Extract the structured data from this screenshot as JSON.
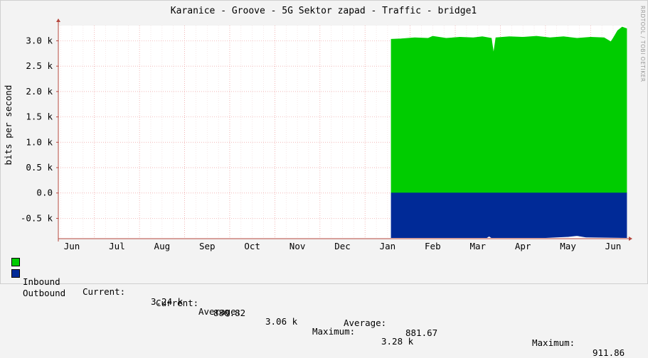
{
  "chart_data": {
    "type": "area",
    "title": "Karanice - Groove - 5G Sektor zapad - Traffic - bridge1",
    "ylabel": "bits per second",
    "ylim": [
      -0.9,
      3.3
    ],
    "yticks": [
      "3.0 k",
      "2.5 k",
      "2.0 k",
      "1.5 k",
      "1.0 k",
      "0.5 k",
      "0.0",
      "-0.5 k"
    ],
    "ytick_values": [
      3.0,
      2.5,
      2.0,
      1.5,
      1.0,
      0.5,
      0.0,
      -0.5
    ],
    "unit": "k",
    "categories": [
      "Jun",
      "Jul",
      "Aug",
      "Sep",
      "Oct",
      "Nov",
      "Dec",
      "Jan",
      "Feb",
      "Mar",
      "Apr",
      "May",
      "Jun"
    ],
    "x": [
      6.0,
      7.0,
      8.0,
      9.0,
      10.0,
      11.0,
      12.0,
      13.0,
      14.0,
      15.0,
      16.0,
      17.0,
      18.0
    ],
    "xlim": [
      5.7,
      18.3
    ],
    "data_start": 13.08,
    "series": [
      {
        "name": "Inbound",
        "color": "#00cc00",
        "points": [
          [
            13.08,
            3.03
          ],
          [
            13.3,
            3.04
          ],
          [
            13.6,
            3.06
          ],
          [
            13.9,
            3.05
          ],
          [
            14.0,
            3.09
          ],
          [
            14.3,
            3.05
          ],
          [
            14.6,
            3.07
          ],
          [
            14.9,
            3.06
          ],
          [
            15.1,
            3.08
          ],
          [
            15.3,
            3.05
          ],
          [
            15.35,
            2.75
          ],
          [
            15.4,
            3.06
          ],
          [
            15.7,
            3.08
          ],
          [
            16.0,
            3.07
          ],
          [
            16.3,
            3.09
          ],
          [
            16.6,
            3.06
          ],
          [
            16.9,
            3.08
          ],
          [
            17.2,
            3.05
          ],
          [
            17.5,
            3.07
          ],
          [
            17.8,
            3.06
          ],
          [
            17.95,
            2.98
          ],
          [
            18.0,
            3.05
          ],
          [
            18.1,
            3.2
          ],
          [
            18.2,
            3.27
          ],
          [
            18.3,
            3.24
          ]
        ]
      },
      {
        "name": "Outbound",
        "color": "#002a97",
        "points": [
          [
            13.08,
            -0.88
          ],
          [
            14.0,
            -0.88
          ],
          [
            15.2,
            -0.88
          ],
          [
            15.25,
            -0.85
          ],
          [
            15.3,
            -0.88
          ],
          [
            16.5,
            -0.88
          ],
          [
            17.0,
            -0.86
          ],
          [
            17.2,
            -0.84
          ],
          [
            17.4,
            -0.87
          ],
          [
            18.3,
            -0.88
          ]
        ]
      }
    ],
    "grid": true,
    "legend_position": "bottom"
  },
  "legend": {
    "inbound": {
      "name": "Inbound",
      "current_label": "Current:",
      "current": "3.24 k",
      "average_label": "Average:",
      "average": "3.06 k",
      "maximum_label": "Maximum:",
      "maximum": "3.28 k",
      "color": "#00cc00"
    },
    "outbound": {
      "name": "Outbound",
      "current_label": "Current:",
      "current": "880.82",
      "average_label": "Average:",
      "average": "881.67",
      "maximum_label": "Maximum:",
      "maximum": "911.86",
      "color": "#002a97"
    }
  },
  "watermark": "RRDTOOL / TOBI OETIKER"
}
